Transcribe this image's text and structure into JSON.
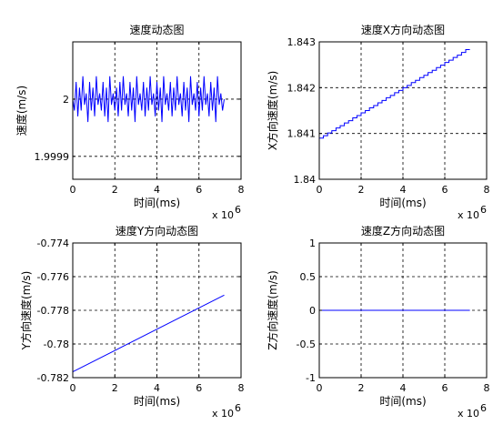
{
  "chart_data": [
    {
      "type": "line",
      "title": "速度动态图",
      "xlabel": "时间(ms)",
      "ylabel": "速度(m/s)",
      "x_multiplier_label": "x 10",
      "x_multiplier_exp": "6",
      "xlim": [
        0,
        8
      ],
      "ylim": [
        1.99986,
        2.0001
      ],
      "xticks": [
        0,
        2,
        4,
        6,
        8
      ],
      "xtick_labels": [
        "0",
        "2",
        "4",
        "6",
        "8"
      ],
      "yticks": [
        1.9999,
        2.0
      ],
      "ytick_labels": [
        "1.9999",
        "2"
      ],
      "grid": true,
      "line_color": "#0000ff",
      "series": [
        {
          "x": [
            0.0,
            0.08,
            0.16,
            0.24,
            0.32,
            0.4,
            0.48,
            0.56,
            0.64,
            0.72,
            0.8,
            0.88,
            0.96,
            1.04,
            1.12,
            1.2,
            1.28,
            1.36,
            1.44,
            1.52,
            1.6,
            1.68,
            1.76,
            1.84,
            1.92,
            2.0,
            2.08,
            2.16,
            2.24,
            2.32,
            2.4,
            2.48,
            2.56,
            2.64,
            2.72,
            2.8,
            2.88,
            2.96,
            3.04,
            3.12,
            3.2,
            3.28,
            3.36,
            3.44,
            3.52,
            3.6,
            3.68,
            3.76,
            3.84,
            3.92,
            4.0,
            4.08,
            4.16,
            4.24,
            4.32,
            4.4,
            4.48,
            4.56,
            4.64,
            4.72,
            4.8,
            4.88,
            4.96,
            5.04,
            5.12,
            5.2,
            5.28,
            5.36,
            5.44,
            5.52,
            5.6,
            5.68,
            5.76,
            5.84,
            5.92,
            6.0,
            6.08,
            6.16,
            6.24,
            6.32,
            6.4,
            6.48,
            6.56,
            6.64,
            6.72,
            6.8,
            6.88,
            6.96,
            7.04,
            7.12,
            7.2
          ],
          "y": [
            2.0,
            1.99998,
            2.00003,
            1.99997,
            2.00002,
            1.99998,
            2.00004,
            1.99999,
            2.00001,
            1.99996,
            2.00003,
            1.99998,
            2.00002,
            1.99997,
            2.00004,
            1.99999,
            2.00001,
            1.99998,
            2.00003,
            1.99997,
            2.00002,
            1.99996,
            2.00004,
            1.99999,
            2.00001,
            1.99998,
            2.00002,
            1.99997,
            2.00003,
            1.99998,
            2.00004,
            1.99999,
            2.00001,
            1.99997,
            2.00003,
            1.99998,
            2.00002,
            1.99996,
            2.00004,
            1.99999,
            2.00001,
            1.99998,
            2.00003,
            1.99997,
            2.00002,
            1.99998,
            2.00004,
            1.99999,
            2.00001,
            1.99997,
            2.00003,
            1.99998,
            2.00002,
            1.99996,
            2.00004,
            1.99999,
            2.00001,
            1.99998,
            2.00003,
            1.99997,
            2.00002,
            1.99998,
            2.00004,
            1.99999,
            2.00001,
            1.99997,
            2.00003,
            1.99998,
            2.00002,
            1.99996,
            2.00004,
            1.99999,
            2.00001,
            1.99998,
            2.00003,
            1.99997,
            2.00002,
            1.99998,
            2.00004,
            1.99999,
            2.00001,
            1.99997,
            2.00003,
            1.99998,
            2.00002,
            1.99996,
            2.00004,
            1.99999,
            2.00001,
            1.99998,
            2.0
          ]
        }
      ]
    },
    {
      "type": "line",
      "title": "速度X方向动态图",
      "xlabel": "时间(ms)",
      "ylabel": "X方向速度(m/s)",
      "x_multiplier_label": "x 10",
      "x_multiplier_exp": "6",
      "xlim": [
        0,
        8
      ],
      "ylim": [
        1.84,
        1.843
      ],
      "xticks": [
        0,
        2,
        4,
        6,
        8
      ],
      "xtick_labels": [
        "0",
        "2",
        "4",
        "6",
        "8"
      ],
      "yticks": [
        1.84,
        1.841,
        1.842,
        1.843
      ],
      "ytick_labels": [
        "1.84",
        "1.841",
        "1.842",
        "1.843"
      ],
      "grid": true,
      "line_color": "#0000ff",
      "series": [
        {
          "x": [
            0.0,
            0.2,
            0.2,
            0.4,
            0.4,
            0.6,
            0.6,
            0.8,
            0.8,
            1.0,
            1.0,
            1.2,
            1.2,
            1.4,
            1.4,
            1.6,
            1.6,
            1.8,
            1.8,
            2.0,
            2.0,
            2.2,
            2.2,
            2.4,
            2.4,
            2.6,
            2.6,
            2.8,
            2.8,
            3.0,
            3.0,
            3.2,
            3.2,
            3.4,
            3.4,
            3.6,
            3.6,
            3.8,
            3.8,
            4.0,
            4.0,
            4.2,
            4.2,
            4.4,
            4.4,
            4.6,
            4.6,
            4.8,
            4.8,
            5.0,
            5.0,
            5.2,
            5.2,
            5.4,
            5.4,
            5.6,
            5.6,
            5.8,
            5.8,
            6.0,
            6.0,
            6.2,
            6.2,
            6.4,
            6.4,
            6.6,
            6.6,
            6.8,
            6.8,
            7.0,
            7.0,
            7.2
          ],
          "y": [
            1.8409,
            1.8409,
            1.84095,
            1.84095,
            1.84101,
            1.84101,
            1.84106,
            1.84106,
            1.84112,
            1.84112,
            1.84117,
            1.84117,
            1.84123,
            1.84123,
            1.84128,
            1.84128,
            1.84134,
            1.84134,
            1.84139,
            1.84139,
            1.84145,
            1.84145,
            1.8415,
            1.8415,
            1.84156,
            1.84156,
            1.84161,
            1.84161,
            1.84167,
            1.84167,
            1.84172,
            1.84172,
            1.84178,
            1.84178,
            1.84183,
            1.84183,
            1.84189,
            1.84189,
            1.84194,
            1.84194,
            1.842,
            1.842,
            1.84205,
            1.84205,
            1.84211,
            1.84211,
            1.84216,
            1.84216,
            1.84222,
            1.84222,
            1.84227,
            1.84227,
            1.84233,
            1.84233,
            1.84238,
            1.84238,
            1.84244,
            1.84244,
            1.84249,
            1.84249,
            1.84255,
            1.84255,
            1.8426,
            1.8426,
            1.84266,
            1.84266,
            1.84271,
            1.84271,
            1.84277,
            1.84277,
            1.84283,
            1.84283
          ]
        }
      ]
    },
    {
      "type": "line",
      "title": "速度Y方向动态图",
      "xlabel": "时间(ms)",
      "ylabel": "Y方向速度(m/s)",
      "x_multiplier_label": "x 10",
      "x_multiplier_exp": "6",
      "xlim": [
        0,
        8
      ],
      "ylim": [
        -0.782,
        -0.774
      ],
      "xticks": [
        0,
        2,
        4,
        6,
        8
      ],
      "xtick_labels": [
        "0",
        "2",
        "4",
        "6",
        "8"
      ],
      "yticks": [
        -0.782,
        -0.78,
        -0.778,
        -0.776,
        -0.774
      ],
      "ytick_labels": [
        "-0.782",
        "-0.78",
        "-0.778",
        "-0.776",
        "-0.774"
      ],
      "grid": true,
      "line_color": "#0000ff",
      "series": [
        {
          "x": [
            0.0,
            7.2
          ],
          "y": [
            -0.78165,
            -0.7771
          ]
        }
      ]
    },
    {
      "type": "line",
      "title": "速度Z方向动态图",
      "xlabel": "时间(ms)",
      "ylabel": "Z方向速度(m/s)",
      "x_multiplier_label": "x 10",
      "x_multiplier_exp": "6",
      "xlim": [
        0,
        8
      ],
      "ylim": [
        -1,
        1
      ],
      "xticks": [
        0,
        2,
        4,
        6,
        8
      ],
      "xtick_labels": [
        "0",
        "2",
        "4",
        "6",
        "8"
      ],
      "yticks": [
        -1,
        -0.5,
        0,
        0.5,
        1
      ],
      "ytick_labels": [
        "-1",
        "-0.5",
        "0",
        "0.5",
        "1"
      ],
      "grid": true,
      "line_color": "#0000ff",
      "series": [
        {
          "x": [
            0.0,
            7.2
          ],
          "y": [
            0,
            0
          ]
        }
      ]
    }
  ]
}
